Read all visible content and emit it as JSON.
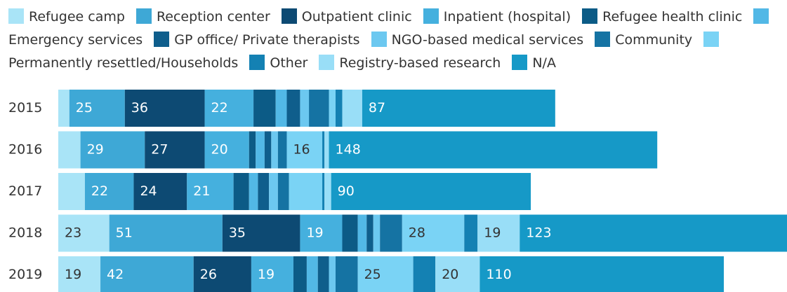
{
  "chart_data": {
    "type": "stacked-bar",
    "categories": [
      "2015",
      "2016",
      "2017",
      "2018",
      "2019"
    ],
    "series": [
      {
        "name": "Refugee camp",
        "color": "#a9e4f7",
        "values": [
          5,
          10,
          12,
          23,
          19
        ]
      },
      {
        "name": "Reception center",
        "color": "#3ea8d6",
        "values": [
          25,
          29,
          22,
          51,
          42
        ]
      },
      {
        "name": "Outpatient clinic",
        "color": "#0d4a73",
        "values": [
          36,
          27,
          24,
          35,
          26
        ]
      },
      {
        "name": "Inpatient (hospital)",
        "color": "#45b0de",
        "values": [
          22,
          20,
          21,
          19,
          19
        ]
      },
      {
        "name": "Refugee health clinic",
        "color": "#0c5b86",
        "values": [
          10,
          3,
          7,
          7,
          6
        ]
      },
      {
        "name": "Emergency services",
        "color": "#52b8e6",
        "values": [
          5,
          4,
          4,
          4,
          5
        ]
      },
      {
        "name": "GP office/ Private therapists",
        "color": "#0f5e8c",
        "values": [
          6,
          3,
          5,
          3,
          5
        ]
      },
      {
        "name": "NGO-based medical services",
        "color": "#6cc8f0",
        "values": [
          4,
          3,
          4,
          3,
          3
        ]
      },
      {
        "name": "Community",
        "color": "#1573a3",
        "values": [
          9,
          4,
          5,
          10,
          10
        ]
      },
      {
        "name": "Permanently resettled/Households",
        "color": "#7ad3f5",
        "values": [
          3,
          16,
          15,
          28,
          25
        ]
      },
      {
        "name": "Other",
        "color": "#1481b3",
        "values": [
          3,
          1,
          1,
          6,
          10
        ]
      },
      {
        "name": "Registry-based research",
        "color": "#99def7",
        "values": [
          9,
          2,
          3,
          19,
          20
        ]
      },
      {
        "name": "N/A",
        "color": "#1699c7",
        "values": [
          87,
          148,
          90,
          123,
          110
        ]
      }
    ]
  }
}
